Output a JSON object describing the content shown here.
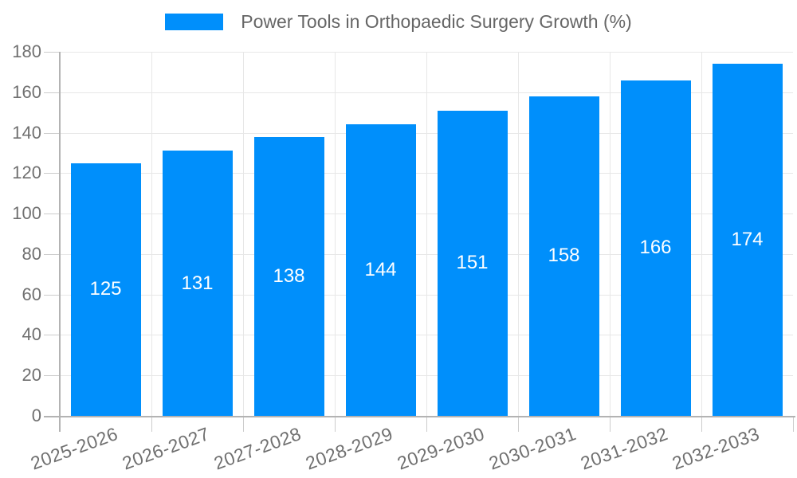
{
  "legend": {
    "label": "Power Tools in Orthopaedic Surgery Growth (%)"
  },
  "chart_data": {
    "type": "bar",
    "title": "Power Tools in Orthopaedic Surgery Growth (%)",
    "categories": [
      "2025-2026",
      "2026-2027",
      "2027-2028",
      "2028-2029",
      "2029-2030",
      "2030-2031",
      "2031-2032",
      "2032-2033"
    ],
    "values": [
      125,
      131,
      138,
      144,
      151,
      158,
      166,
      174
    ],
    "xlabel": "",
    "ylabel": "",
    "ylim": [
      0,
      180
    ],
    "yticks": [
      0,
      20,
      40,
      60,
      80,
      100,
      120,
      140,
      160,
      180
    ],
    "grid": true,
    "legend_position": "top-center",
    "value_labels": "inside-center"
  },
  "colors": {
    "bar": "#008FFB",
    "grid": "#e7e7e7",
    "axis": "#b3b3b3",
    "tick": "#cccccc",
    "tick_label": "#707070",
    "legend_text": "#666666",
    "value_label": "#ffffff",
    "background": "#ffffff"
  }
}
